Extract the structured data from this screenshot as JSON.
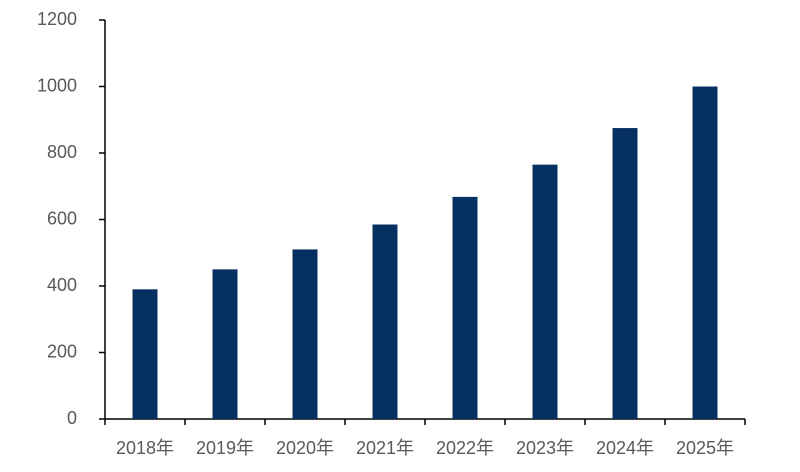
{
  "chart_data": {
    "type": "bar",
    "categories": [
      "2018年",
      "2019年",
      "2020年",
      "2021年",
      "2022年",
      "2023年",
      "2024年",
      "2025年"
    ],
    "values": [
      390,
      450,
      510,
      585,
      668,
      765,
      875,
      1000
    ],
    "color": "#06305f",
    "ylim": [
      0,
      1200
    ],
    "yticks": [
      0,
      200,
      400,
      600,
      800,
      1000,
      1200
    ],
    "grid": false
  }
}
